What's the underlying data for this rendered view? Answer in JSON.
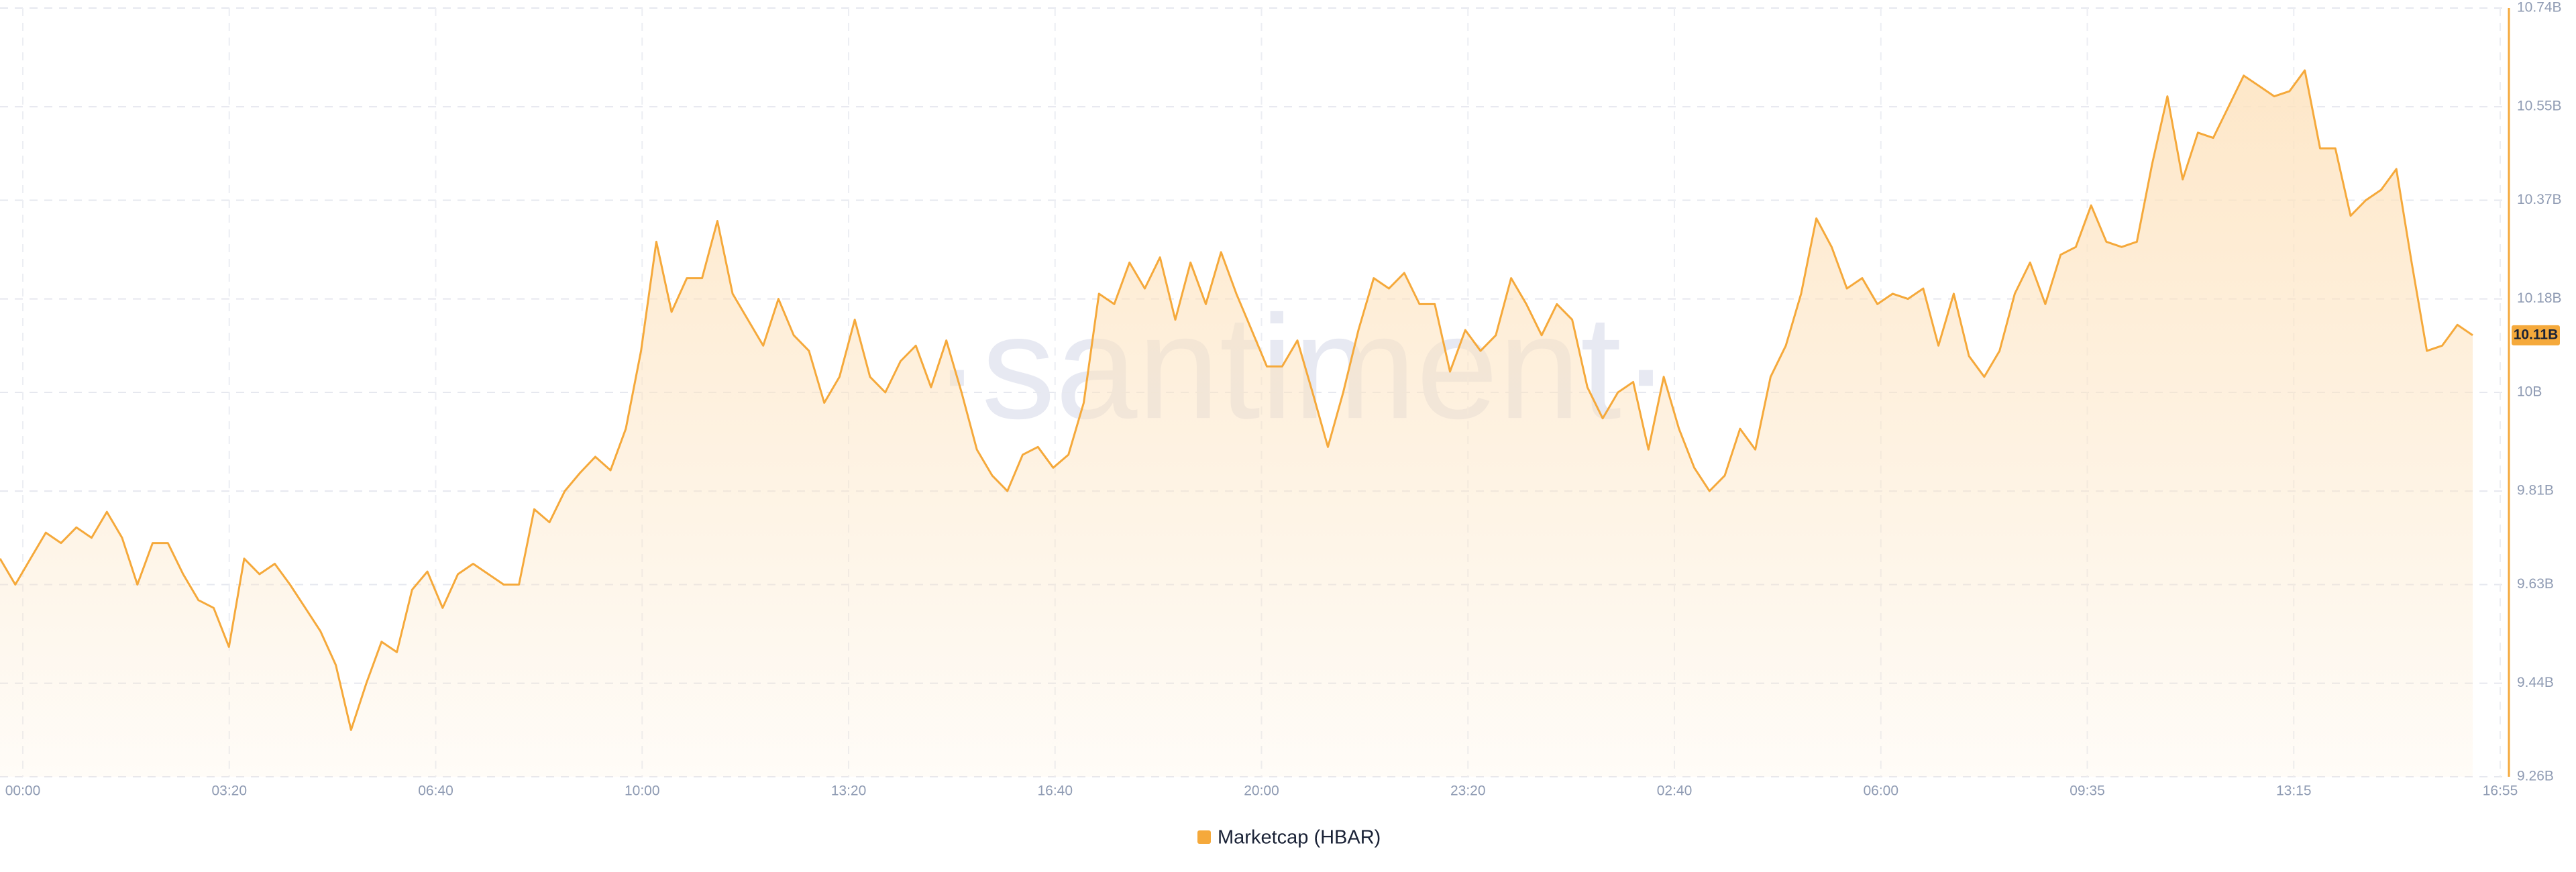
{
  "chart_data": {
    "type": "area-line",
    "watermark": "·santiment·",
    "x_tick_labels": [
      "00:00",
      "03:20",
      "06:40",
      "10:00",
      "13:20",
      "16:40",
      "20:00",
      "23:20",
      "02:40",
      "06:00",
      "09:35",
      "13:15",
      "16:55"
    ],
    "ylim": [
      9.26,
      10.74
    ],
    "yticks": [
      {
        "value": 9.26,
        "label": "9.26B"
      },
      {
        "value": 9.44,
        "label": "9.44B"
      },
      {
        "value": 9.63,
        "label": "9.63B"
      },
      {
        "value": 9.81,
        "label": "9.81B"
      },
      {
        "value": 10,
        "label": "10B"
      },
      {
        "value": 10.18,
        "label": "10.18B"
      },
      {
        "value": 10.37,
        "label": "10.37B"
      },
      {
        "value": 10.55,
        "label": "10.55B"
      },
      {
        "value": 10.74,
        "label": "10.74B"
      }
    ],
    "grid": true,
    "series": [
      {
        "name": "Marketcap (HBAR)",
        "color": "#f5a93b",
        "values": [
          9.68,
          9.63,
          9.68,
          9.73,
          9.71,
          9.74,
          9.72,
          9.77,
          9.72,
          9.63,
          9.71,
          9.71,
          9.65,
          9.6,
          9.585,
          9.51,
          9.68,
          9.65,
          9.67,
          9.63,
          9.585,
          9.54,
          9.475,
          9.35,
          9.44,
          9.52,
          9.5,
          9.62,
          9.655,
          9.585,
          9.65,
          9.67,
          9.65,
          9.63,
          9.63,
          9.775,
          9.75,
          9.81,
          9.845,
          9.876,
          9.85,
          9.93,
          10.08,
          10.29,
          10.155,
          10.22,
          10.22,
          10.33,
          10.19,
          10.14,
          10.09,
          10.18,
          10.11,
          10.08,
          9.98,
          10.03,
          10.14,
          10.03,
          10.0,
          10.06,
          10.09,
          10.01,
          10.1,
          10.0,
          9.89,
          9.84,
          9.81,
          9.88,
          9.895,
          9.855,
          9.88,
          9.98,
          10.19,
          10.17,
          10.25,
          10.2,
          10.26,
          10.14,
          10.25,
          10.17,
          10.27,
          10.19,
          10.12,
          10.05,
          10.05,
          10.1,
          9.999,
          9.895,
          10.0,
          10.12,
          10.22,
          10.2,
          10.23,
          10.17,
          10.17,
          10.04,
          10.12,
          10.08,
          10.11,
          10.22,
          10.17,
          10.11,
          10.17,
          10.14,
          10.01,
          9.95,
          10.0,
          10.02,
          9.89,
          10.03,
          9.93,
          9.855,
          9.81,
          9.84,
          9.93,
          9.89,
          10.03,
          10.09,
          10.19,
          10.335,
          10.28,
          10.2,
          10.22,
          10.17,
          10.19,
          10.18,
          10.2,
          10.09,
          10.19,
          10.07,
          10.03,
          10.08,
          10.19,
          10.25,
          10.17,
          10.265,
          10.28,
          10.36,
          10.29,
          10.28,
          10.29,
          10.44,
          10.57,
          10.41,
          10.5,
          10.49,
          10.55,
          10.61,
          10.59,
          10.57,
          10.58,
          10.62,
          10.47,
          10.47,
          10.34,
          10.37,
          10.39,
          10.43,
          10.25,
          10.08,
          10.09,
          10.13,
          10.11
        ]
      }
    ],
    "last_value": {
      "value": 10.11,
      "label": "10.11B"
    }
  }
}
